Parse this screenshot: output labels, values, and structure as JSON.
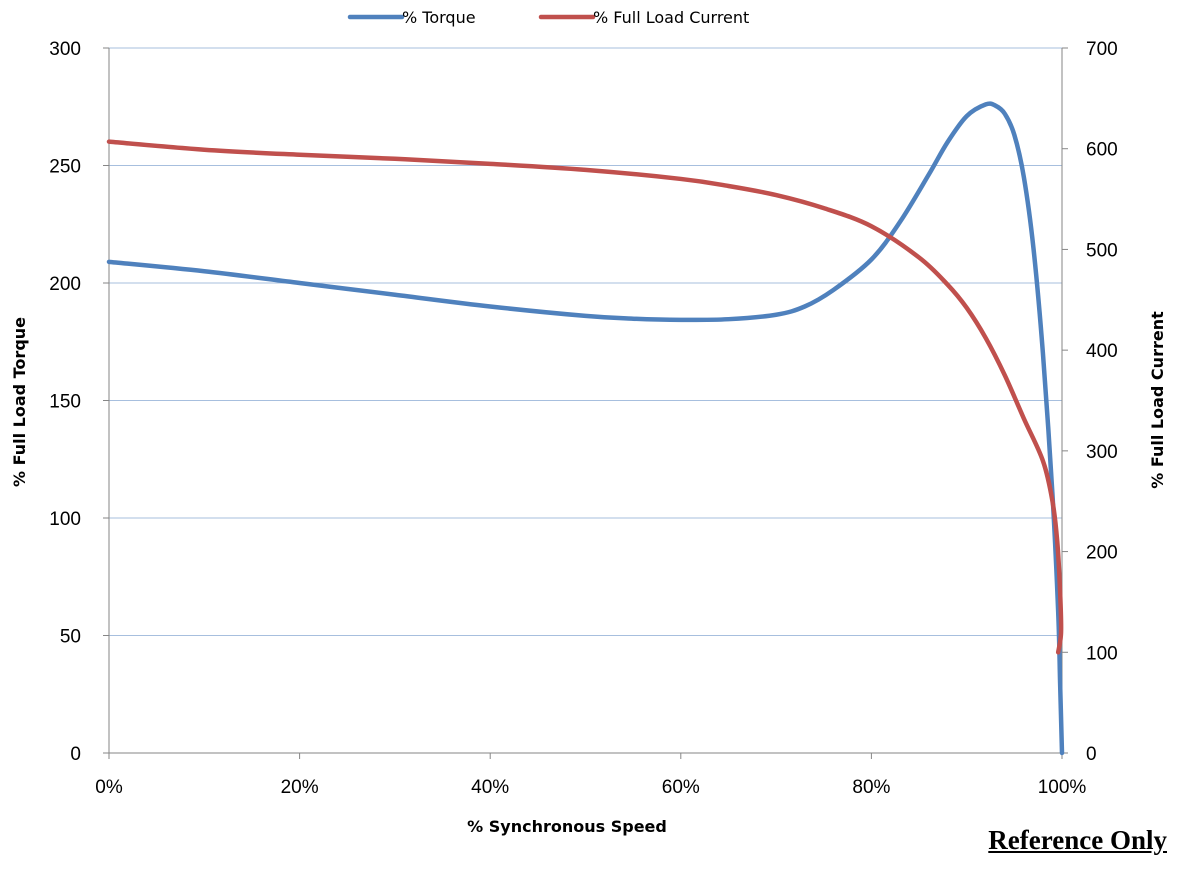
{
  "chart_data": {
    "type": "line",
    "xlabel": "% Synchronous Speed",
    "ylabel_left": "% Full Load Torque",
    "ylabel_right": "% Full Load Current",
    "xlim": [
      0,
      100
    ],
    "ylim_left": [
      0,
      300
    ],
    "ylim_right": [
      0,
      700
    ],
    "x_ticks": [
      "0%",
      "20%",
      "40%",
      "60%",
      "80%",
      "100%"
    ],
    "y_ticks_left": [
      "0",
      "50",
      "100",
      "150",
      "200",
      "250",
      "300"
    ],
    "y_ticks_right": [
      "0",
      "100",
      "200",
      "300",
      "400",
      "500",
      "600",
      "700"
    ],
    "grid": "horizontal",
    "legend": "top-center",
    "series": [
      {
        "name": "% Torque",
        "axis": "left",
        "color": "#4F81BD",
        "points": [
          [
            0,
            209
          ],
          [
            10,
            205
          ],
          [
            20,
            200
          ],
          [
            30,
            195
          ],
          [
            40,
            190
          ],
          [
            50,
            186
          ],
          [
            55,
            184.8
          ],
          [
            60,
            184.3
          ],
          [
            65,
            184.6
          ],
          [
            70,
            186.5
          ],
          [
            73,
            190
          ],
          [
            76,
            197
          ],
          [
            80,
            210
          ],
          [
            83,
            226
          ],
          [
            86,
            246
          ],
          [
            88,
            260
          ],
          [
            90,
            271
          ],
          [
            92,
            276
          ],
          [
            93,
            275.5
          ],
          [
            94,
            272
          ],
          [
            95,
            263
          ],
          [
            96,
            245
          ],
          [
            97,
            215
          ],
          [
            98,
            170
          ],
          [
            99,
            110
          ],
          [
            99.6,
            60
          ],
          [
            99.8,
            30
          ],
          [
            100,
            0
          ]
        ]
      },
      {
        "name": "% Full Load Current",
        "axis": "right",
        "color": "#C0504D",
        "points": [
          [
            0,
            607
          ],
          [
            10,
            599
          ],
          [
            20,
            594
          ],
          [
            30,
            590
          ],
          [
            40,
            585
          ],
          [
            50,
            579
          ],
          [
            60,
            570
          ],
          [
            65,
            563
          ],
          [
            70,
            554
          ],
          [
            75,
            541
          ],
          [
            80,
            523
          ],
          [
            85,
            492
          ],
          [
            88,
            465
          ],
          [
            90,
            442
          ],
          [
            92,
            412
          ],
          [
            94,
            375
          ],
          [
            96,
            332
          ],
          [
            98,
            290
          ],
          [
            99,
            250
          ],
          [
            99.5,
            210
          ],
          [
            99.8,
            160
          ],
          [
            99.9,
            120
          ],
          [
            99.6,
            100
          ]
        ]
      }
    ]
  },
  "footer": {
    "note": "Reference Only"
  }
}
